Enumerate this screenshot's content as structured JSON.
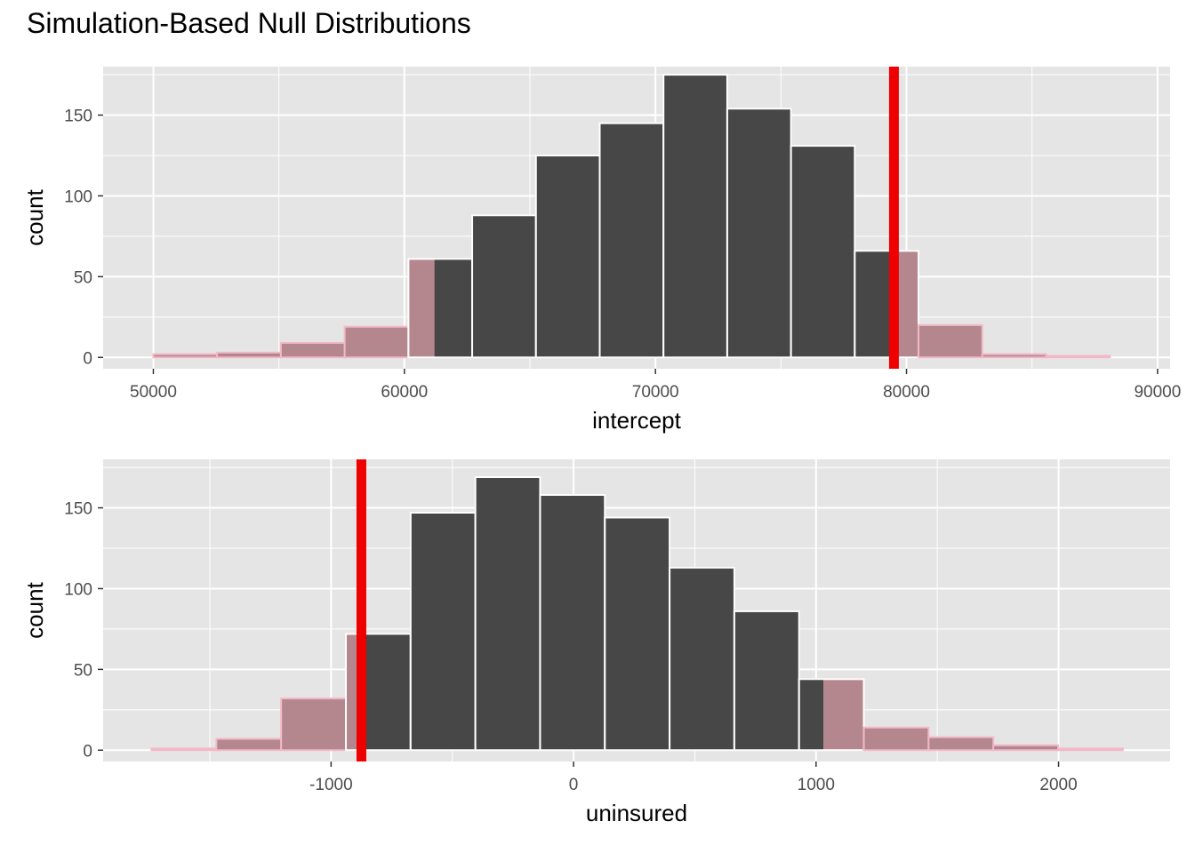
{
  "title": "Simulation-Based Null Distributions",
  "colors": {
    "panel_bg": "#e5e5e5",
    "grid": "#ffffff",
    "bar_inside": "#474747",
    "bar_shaded": "#b4878e",
    "bar_shaded_outline": "#f2b8c6",
    "obs_line": "#ee0000"
  },
  "chart_data": [
    {
      "type": "bar",
      "subtype": "histogram",
      "xlabel": "intercept",
      "ylabel": "count",
      "xlim": [
        48000,
        90500
      ],
      "ylim": [
        -7,
        180
      ],
      "x_ticks": [
        50000,
        60000,
        70000,
        80000,
        90000
      ],
      "x_tick_labels": [
        "50000",
        "60000",
        "70000",
        "80000",
        "90000"
      ],
      "y_ticks": [
        0,
        50,
        100,
        150
      ],
      "y_tick_labels": [
        "0",
        "50",
        "100",
        "150"
      ],
      "bins": [
        {
          "x0": 50000,
          "x1": 52540,
          "count": 2
        },
        {
          "x0": 52540,
          "x1": 55080,
          "count": 3
        },
        {
          "x0": 55080,
          "x1": 57620,
          "count": 9
        },
        {
          "x0": 57620,
          "x1": 60160,
          "count": 19
        },
        {
          "x0": 60160,
          "x1": 62700,
          "count": 61
        },
        {
          "x0": 62700,
          "x1": 65240,
          "count": 88
        },
        {
          "x0": 65240,
          "x1": 67780,
          "count": 125
        },
        {
          "x0": 67780,
          "x1": 70320,
          "count": 145
        },
        {
          "x0": 70320,
          "x1": 72860,
          "count": 175
        },
        {
          "x0": 72860,
          "x1": 75400,
          "count": 154
        },
        {
          "x0": 75400,
          "x1": 77940,
          "count": 131
        },
        {
          "x0": 77940,
          "x1": 80480,
          "count": 66
        },
        {
          "x0": 80480,
          "x1": 83020,
          "count": 20
        },
        {
          "x0": 83020,
          "x1": 85560,
          "count": 2
        },
        {
          "x0": 85560,
          "x1": 88100,
          "count": 1
        }
      ],
      "observed": 79500,
      "shade_lower": 61200,
      "shade_upper": 79500
    },
    {
      "type": "bar",
      "subtype": "histogram",
      "xlabel": "uninsured",
      "ylabel": "count",
      "xlim": [
        -1940,
        2460
      ],
      "ylim": [
        -7,
        180
      ],
      "x_ticks": [
        -1000,
        0,
        1000,
        2000
      ],
      "x_tick_labels": [
        "-1000",
        "0",
        "1000",
        "2000"
      ],
      "y_ticks": [
        0,
        50,
        100,
        150
      ],
      "y_tick_labels": [
        "0",
        "50",
        "100",
        "150"
      ],
      "bins": [
        {
          "x0": -1740,
          "x1": -1473,
          "count": 1
        },
        {
          "x0": -1473,
          "x1": -1206,
          "count": 7
        },
        {
          "x0": -1206,
          "x1": -939,
          "count": 32
        },
        {
          "x0": -939,
          "x1": -672,
          "count": 72
        },
        {
          "x0": -672,
          "x1": -405,
          "count": 147
        },
        {
          "x0": -405,
          "x1": -138,
          "count": 169
        },
        {
          "x0": -138,
          "x1": 129,
          "count": 158
        },
        {
          "x0": 129,
          "x1": 396,
          "count": 144
        },
        {
          "x0": 396,
          "x1": 663,
          "count": 113
        },
        {
          "x0": 663,
          "x1": 930,
          "count": 86
        },
        {
          "x0": 930,
          "x1": 1197,
          "count": 44
        },
        {
          "x0": 1197,
          "x1": 1464,
          "count": 14
        },
        {
          "x0": 1464,
          "x1": 1731,
          "count": 8
        },
        {
          "x0": 1731,
          "x1": 1998,
          "count": 3
        },
        {
          "x0": 1998,
          "x1": 2265,
          "count": 1
        }
      ],
      "observed": -875,
      "shade_lower": -875,
      "shade_upper": 1030
    }
  ]
}
